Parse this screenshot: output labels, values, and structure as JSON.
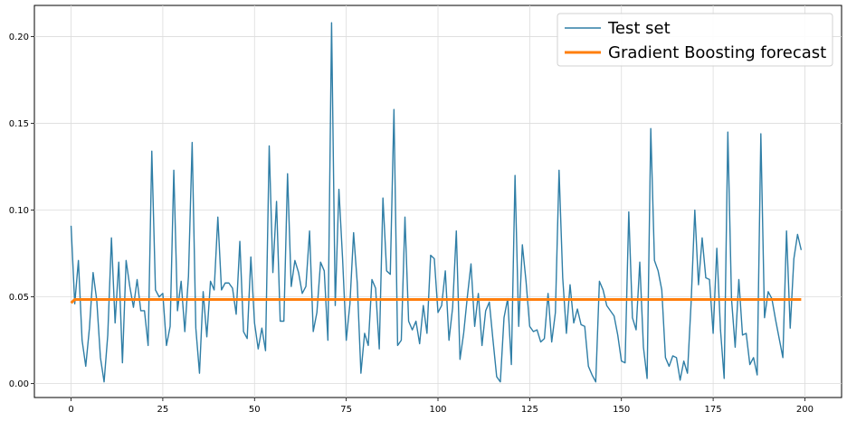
{
  "chart_data": {
    "type": "line",
    "title": "",
    "xlabel": "",
    "ylabel": "",
    "xlim": [
      -10,
      210
    ],
    "ylim": [
      -0.008,
      0.218
    ],
    "x_ticks": [
      0,
      25,
      50,
      75,
      100,
      125,
      150,
      175,
      200
    ],
    "x_tick_labels": [
      "0",
      "25",
      "50",
      "75",
      "100",
      "125",
      "150",
      "175",
      "200"
    ],
    "y_ticks": [
      0.0,
      0.05,
      0.1,
      0.15,
      0.2
    ],
    "y_tick_labels": [
      "0.00",
      "0.05",
      "0.10",
      "0.15",
      "0.20"
    ],
    "grid": true,
    "legend_position": "top-right",
    "series": [
      {
        "name": "Test set",
        "color": "#2f7ea6",
        "style": "solid-thin",
        "x_start": 0,
        "values": [
          0.091,
          0.046,
          0.071,
          0.025,
          0.01,
          0.032,
          0.064,
          0.048,
          0.015,
          0.001,
          0.028,
          0.084,
          0.035,
          0.07,
          0.012,
          0.071,
          0.056,
          0.044,
          0.06,
          0.042,
          0.042,
          0.022,
          0.134,
          0.054,
          0.05,
          0.052,
          0.022,
          0.033,
          0.123,
          0.042,
          0.059,
          0.03,
          0.062,
          0.139,
          0.032,
          0.006,
          0.053,
          0.027,
          0.059,
          0.054,
          0.096,
          0.054,
          0.058,
          0.058,
          0.055,
          0.04,
          0.082,
          0.03,
          0.026,
          0.073,
          0.035,
          0.02,
          0.032,
          0.019,
          0.137,
          0.064,
          0.105,
          0.036,
          0.036,
          0.121,
          0.056,
          0.071,
          0.064,
          0.052,
          0.056,
          0.088,
          0.03,
          0.041,
          0.07,
          0.065,
          0.025,
          0.208,
          0.045,
          0.112,
          0.072,
          0.025,
          0.046,
          0.087,
          0.058,
          0.006,
          0.029,
          0.022,
          0.06,
          0.055,
          0.02,
          0.107,
          0.065,
          0.063,
          0.158,
          0.022,
          0.025,
          0.096,
          0.036,
          0.031,
          0.036,
          0.023,
          0.045,
          0.029,
          0.074,
          0.072,
          0.041,
          0.045,
          0.065,
          0.025,
          0.044,
          0.088,
          0.014,
          0.029,
          0.05,
          0.069,
          0.033,
          0.052,
          0.022,
          0.042,
          0.047,
          0.025,
          0.004,
          0.001,
          0.038,
          0.049,
          0.011,
          0.12,
          0.033,
          0.08,
          0.059,
          0.033,
          0.03,
          0.031,
          0.024,
          0.026,
          0.052,
          0.024,
          0.041,
          0.123,
          0.061,
          0.029,
          0.057,
          0.035,
          0.043,
          0.034,
          0.033,
          0.01,
          0.005,
          0.001,
          0.059,
          0.054,
          0.045,
          0.042,
          0.039,
          0.028,
          0.013,
          0.012,
          0.099,
          0.038,
          0.031,
          0.07,
          0.021,
          0.003,
          0.147,
          0.071,
          0.065,
          0.054,
          0.015,
          0.01,
          0.016,
          0.015,
          0.002,
          0.013,
          0.006,
          0.047,
          0.1,
          0.057,
          0.084,
          0.061,
          0.06,
          0.029,
          0.078,
          0.031,
          0.003,
          0.145,
          0.049,
          0.021,
          0.06,
          0.028,
          0.029,
          0.011,
          0.015,
          0.005,
          0.144,
          0.038,
          0.053,
          0.049,
          0.037,
          0.026,
          0.015,
          0.088,
          0.032,
          0.072,
          0.086,
          0.077
        ]
      },
      {
        "name": "Gradient Boosting forecast",
        "color": "#ff7f0e",
        "style": "solid-thick",
        "x_start": 0,
        "constant_value": 0.0485,
        "initial_value": 0.0465,
        "length": 200
      }
    ]
  }
}
